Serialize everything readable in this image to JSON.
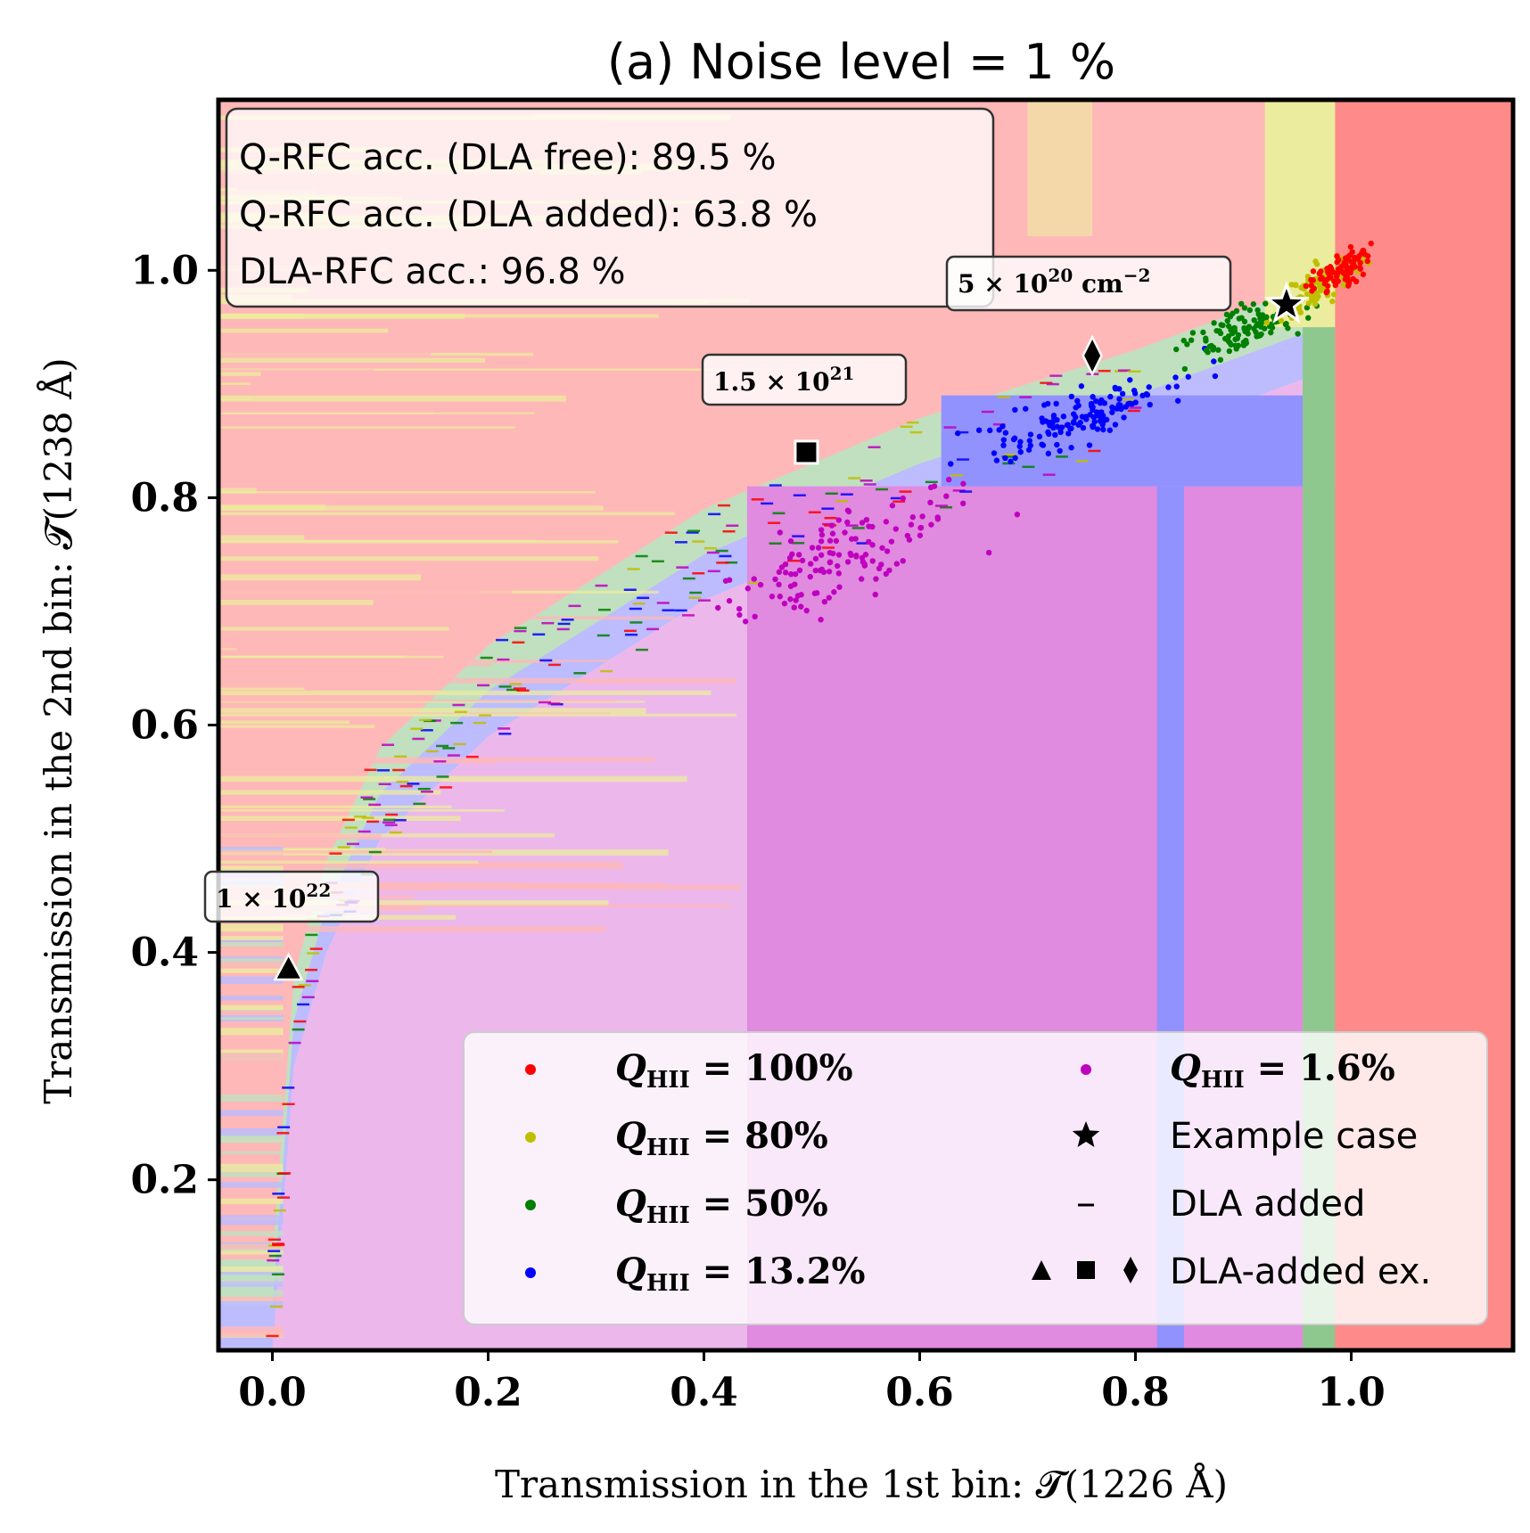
{
  "chart_data": {
    "type": "scatter",
    "title": "(a) Noise level = 1 %",
    "xlabel": "Transmission in the 1st bin: 𝓣(1226 Å)",
    "ylabel": "Transmission in the 2nd bin: 𝓣(1238 Å)",
    "xlim": [
      -0.05,
      1.15
    ],
    "ylim": [
      0.05,
      1.15
    ],
    "x_ticks": [
      "0.0",
      "0.2",
      "0.4",
      "0.6",
      "0.8",
      "1.0"
    ],
    "x_tick_values": [
      0.0,
      0.2,
      0.4,
      0.6,
      0.8,
      1.0
    ],
    "y_ticks": [
      "0.2",
      "0.4",
      "0.6",
      "0.8",
      "1.0"
    ],
    "y_tick_values": [
      0.2,
      0.4,
      0.6,
      0.8,
      1.0
    ],
    "grid": false,
    "legend_placement": "lower-right",
    "accuracy_box": {
      "lines": [
        "Q-RFC acc. (DLA free): 89.5 %",
        "Q-RFC acc. (DLA added): 63.8 %",
        "DLA-RFC acc.: 96.8 %"
      ]
    },
    "series": [
      {
        "name": "Q_HII = 100%",
        "label_main": "Q",
        "label_sub": "HII",
        "label_rest": " = 100%",
        "color": "#ff0000",
        "center": [
          0.99,
          1.0
        ],
        "spread": [
          0.02,
          0.015
        ],
        "n": 90
      },
      {
        "name": "Q_HII = 80%",
        "label_main": "Q",
        "label_sub": "HII",
        "label_rest": " = 80%",
        "color": "#bfbf00",
        "center": [
          0.975,
          0.99
        ],
        "spread": [
          0.025,
          0.018
        ],
        "n": 110
      },
      {
        "name": "Q_HII = 50%",
        "label_main": "Q",
        "label_sub": "HII",
        "label_rest": " = 50%",
        "color": "#008000",
        "center": [
          0.9,
          0.95
        ],
        "spread": [
          0.045,
          0.022
        ],
        "n": 110
      },
      {
        "name": "Q_HII = 13.2%",
        "label_main": "Q",
        "label_sub": "HII",
        "label_rest": " = 13.2%",
        "color": "#0000ff",
        "center": [
          0.75,
          0.87
        ],
        "spread": [
          0.06,
          0.025
        ],
        "n": 140
      },
      {
        "name": "Q_HII = 1.6%",
        "label_main": "Q",
        "label_sub": "HII",
        "label_rest": " = 1.6%",
        "color": "#bf00bf",
        "center": [
          0.53,
          0.75
        ],
        "spread": [
          0.08,
          0.04
        ],
        "n": 130
      }
    ],
    "legend_entries": [
      {
        "symbol": "dot",
        "color": "#ff0000",
        "series": 0
      },
      {
        "symbol": "dot",
        "color": "#bfbf00",
        "series": 1
      },
      {
        "symbol": "dot",
        "color": "#008000",
        "series": 2
      },
      {
        "symbol": "dot",
        "color": "#0000ff",
        "series": 3
      },
      {
        "symbol": "dot",
        "color": "#bf00bf",
        "series": 4
      },
      {
        "symbol": "star",
        "label": "Example case"
      },
      {
        "symbol": "dash",
        "label": "DLA added"
      },
      {
        "symbol": "tri-sq-dia",
        "label": "DLA-added ex."
      }
    ],
    "example_case": {
      "x": 0.94,
      "y": 0.97,
      "marker": "star"
    },
    "dla_examples": [
      {
        "x": 0.015,
        "y": 0.385,
        "marker": "triangle",
        "label_main": "1 × 10",
        "label_sup": "22",
        "label_unit": ""
      },
      {
        "x": 0.495,
        "y": 0.84,
        "marker": "square",
        "label_main": "1.5 × 10",
        "label_sup": "21",
        "label_unit": ""
      },
      {
        "x": 0.76,
        "y": 0.925,
        "marker": "diamond",
        "label_main": "5 × 10",
        "label_sup": "20",
        "label_unit": " cm",
        "label_unit_sup": "−2"
      }
    ],
    "dla_added_trend": {
      "description_points_x": [
        0.0,
        0.02,
        0.05,
        0.1,
        0.2,
        0.3,
        0.4,
        0.5,
        0.6,
        0.7,
        0.8
      ],
      "description_points_y": [
        0.1,
        0.35,
        0.45,
        0.55,
        0.64,
        0.7,
        0.76,
        0.8,
        0.84,
        0.87,
        0.9
      ]
    },
    "region_colors": {
      "class_100": "#ff8a8a",
      "class_80": "#ecec9e",
      "class_50": "#8ec88e",
      "class_13": "#9292ff",
      "class_1p6": "#e08ae0",
      "light_100": "#ffb8b8",
      "light_50": "#c0e0c0",
      "light_13": "#bcbcff",
      "light_1p6": "#ecb8ec"
    }
  }
}
